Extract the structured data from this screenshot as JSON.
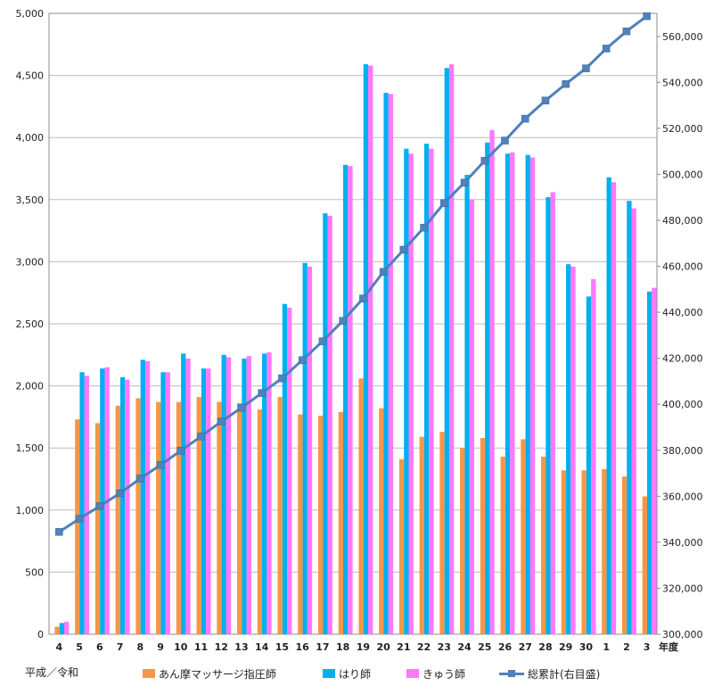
{
  "chart_data": {
    "type": "bar",
    "categories": [
      "4",
      "5",
      "6",
      "7",
      "8",
      "9",
      "10",
      "11",
      "12",
      "13",
      "14",
      "15",
      "16",
      "17",
      "18",
      "19",
      "20",
      "21",
      "22",
      "23",
      "24",
      "25",
      "26",
      "27",
      "28",
      "29",
      "30",
      "1",
      "2",
      "3"
    ],
    "x_unit_label": "年度",
    "x_era_label": "平成／令和",
    "y_left": {
      "lim": [
        0,
        5000
      ],
      "ticks": [
        "0",
        "500",
        "1,000",
        "1,500",
        "2,000",
        "2,500",
        "3,000",
        "3,500",
        "4,000",
        "4,500",
        "5,000"
      ]
    },
    "y_right": {
      "lim": [
        300000,
        570000
      ],
      "ticks": [
        "300,000",
        "320,000",
        "340,000",
        "360,000",
        "380,000",
        "400,000",
        "420,000",
        "440,000",
        "460,000",
        "480,000",
        "500,000",
        "520,000",
        "540,000",
        "560,000"
      ]
    },
    "grid": true,
    "legend_position": "bottom",
    "series": [
      {
        "name": "あん摩マッサージ指圧師",
        "axis": "left",
        "kind": "bar",
        "color": "#f79646",
        "values": [
          60,
          1730,
          1700,
          1840,
          1900,
          1870,
          1870,
          1910,
          1870,
          1860,
          1810,
          1910,
          1770,
          1760,
          1790,
          2060,
          1820,
          1410,
          1590,
          1630,
          1500,
          1580,
          1430,
          1570,
          1430,
          1320,
          1320,
          1330,
          1270,
          1110
        ]
      },
      {
        "name": "はり師",
        "axis": "left",
        "kind": "bar",
        "color": "#00b0f0",
        "values": [
          90,
          2110,
          2140,
          2070,
          2210,
          2110,
          2260,
          2140,
          2250,
          2220,
          2260,
          2660,
          2990,
          3390,
          3780,
          4590,
          4360,
          3910,
          3950,
          4560,
          3700,
          3960,
          3870,
          3860,
          3520,
          2980,
          2720,
          3680,
          3490,
          2760
        ]
      },
      {
        "name": "きゅう師",
        "axis": "left",
        "kind": "bar",
        "color": "#ff77ff",
        "values": [
          100,
          2080,
          2150,
          2050,
          2200,
          2110,
          2220,
          2140,
          2230,
          2240,
          2270,
          2630,
          2960,
          3370,
          3770,
          4580,
          4350,
          3870,
          3910,
          4590,
          3500,
          4060,
          3880,
          3840,
          3560,
          2960,
          2860,
          3640,
          3430,
          2790
        ]
      },
      {
        "name": "総累計(右目盛)",
        "axis": "right",
        "kind": "line",
        "color": "#4f81bd",
        "values": [
          344500,
          350200,
          355700,
          361300,
          367700,
          373600,
          379800,
          386000,
          392500,
          398500,
          404900,
          411300,
          419200,
          427400,
          436300,
          446000,
          457600,
          467200,
          476800,
          487500,
          496400,
          505900,
          514700,
          524200,
          532100,
          539300,
          546100,
          554700,
          562200,
          568800
        ]
      }
    ]
  }
}
